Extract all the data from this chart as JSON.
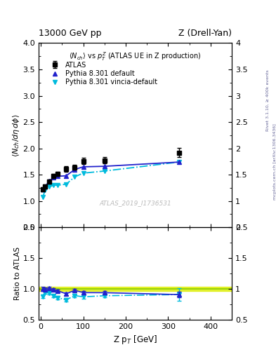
{
  "title_left": "13000 GeV pp",
  "title_right": "Z (Drell-Yan)",
  "right_label_top": "Rivet 3.1.10, ≥ 400k events",
  "right_label_bot": "mcplots.cern.ch [arXiv:1306.3436]",
  "plot_title": "$\\langle N_{ch}\\rangle$ vs $p_T^Z$ (ATLAS UE in Z production)",
  "watermark": "ATLAS_2019_I1736531",
  "ylabel_main": "$\\langle N_{ch}/d\\eta\\, d\\phi\\rangle$",
  "ylabel_ratio": "Ratio to ATLAS",
  "xlabel": "Z p$_T$ [GeV]",
  "ylim_main": [
    0.5,
    4.0
  ],
  "ylim_ratio": [
    0.5,
    2.0
  ],
  "xlim": [
    -5,
    450
  ],
  "atlas_x": [
    5,
    10,
    20,
    30,
    40,
    60,
    80,
    100,
    150,
    325
  ],
  "atlas_y": [
    1.22,
    1.28,
    1.37,
    1.47,
    1.52,
    1.61,
    1.64,
    1.76,
    1.77,
    1.92
  ],
  "atlas_yerr": [
    0.04,
    0.04,
    0.04,
    0.04,
    0.04,
    0.05,
    0.05,
    0.06,
    0.06,
    0.09
  ],
  "pythia_default_x": [
    5,
    10,
    20,
    30,
    40,
    60,
    80,
    100,
    150,
    325
  ],
  "pythia_default_y": [
    1.22,
    1.27,
    1.38,
    1.45,
    1.47,
    1.48,
    1.6,
    1.65,
    1.66,
    1.74
  ],
  "pythia_vincia_x": [
    5,
    10,
    20,
    30,
    40,
    60,
    80,
    100,
    150,
    325
  ],
  "pythia_vincia_y": [
    1.07,
    1.21,
    1.27,
    1.3,
    1.3,
    1.32,
    1.46,
    1.53,
    1.57,
    1.74
  ],
  "ratio_default_y": [
    1.0,
    0.99,
    1.007,
    0.986,
    0.967,
    0.919,
    0.976,
    0.938,
    0.937,
    0.906
  ],
  "ratio_vincia_y": [
    0.877,
    0.945,
    0.927,
    0.884,
    0.855,
    0.82,
    0.89,
    0.869,
    0.887,
    0.906
  ],
  "ratio_default_yerr": [
    0.03,
    0.03,
    0.025,
    0.025,
    0.025,
    0.028,
    0.028,
    0.03,
    0.03,
    0.05
  ],
  "ratio_vincia_yerr": [
    0.03,
    0.03,
    0.025,
    0.025,
    0.025,
    0.028,
    0.028,
    0.03,
    0.03,
    0.1
  ],
  "atlas_color": "black",
  "pythia_default_color": "#2222cc",
  "pythia_vincia_color": "#00bbdd",
  "band_yellow": "#ddee00",
  "band_green": "#88cc00",
  "band_alpha": 0.6,
  "xticks": [
    0,
    100,
    200,
    300,
    400
  ],
  "yticks_main": [
    0.5,
    1.0,
    1.5,
    2.0,
    2.5,
    3.0,
    3.5,
    4.0
  ],
  "yticks_ratio": [
    0.5,
    1.0,
    1.5,
    2.0
  ]
}
